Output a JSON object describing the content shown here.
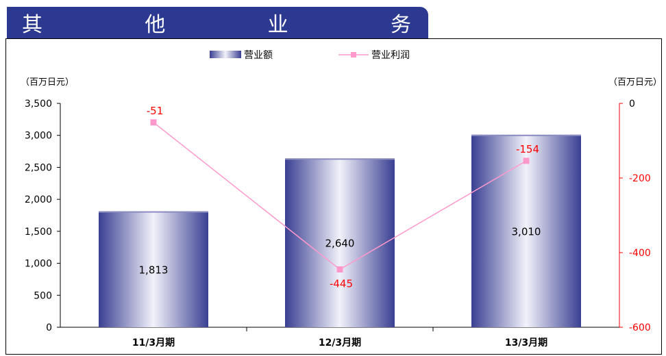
{
  "header": {
    "title_chars": [
      "其",
      "他",
      "业",
      "务"
    ]
  },
  "colors": {
    "header_bg": "#2b3990",
    "bar_dark": "#3a3f92",
    "bar_light": "#f2f2fa",
    "line": "#ff99cc",
    "line_label": "#ff0000",
    "right_axis": "#ff0000"
  },
  "chart_data": {
    "type": "bar",
    "categories": [
      "11/3月期",
      "12/3月期",
      "13/3月期"
    ],
    "series": [
      {
        "name": "营业额",
        "type": "bar",
        "axis": "left",
        "values": [
          1813,
          2640,
          3010
        ],
        "labels": [
          "1,813",
          "2,640",
          "3,010"
        ]
      },
      {
        "name": "营业利润",
        "type": "line",
        "axis": "right",
        "values": [
          -51,
          -445,
          -154
        ],
        "labels": [
          "-51",
          "-445",
          "-154"
        ]
      }
    ],
    "left_axis": {
      "unit": "（百万日元）",
      "ylim": [
        0,
        3500
      ],
      "ticks": [
        0,
        500,
        1000,
        1500,
        2000,
        2500,
        3000,
        3500
      ],
      "tick_labels": [
        "0",
        "500",
        "1,000",
        "1,500",
        "2,000",
        "2,500",
        "3,000",
        "3,500"
      ]
    },
    "right_axis": {
      "unit": "（百万日元）",
      "ylim": [
        -600,
        0
      ],
      "ticks": [
        0,
        -200,
        -400,
        -600
      ],
      "tick_labels": [
        "0",
        "-200",
        "-400",
        "-600"
      ]
    },
    "legend": [
      "营业额",
      "营业利润"
    ],
    "legend_position": "top-center",
    "grid": false
  }
}
